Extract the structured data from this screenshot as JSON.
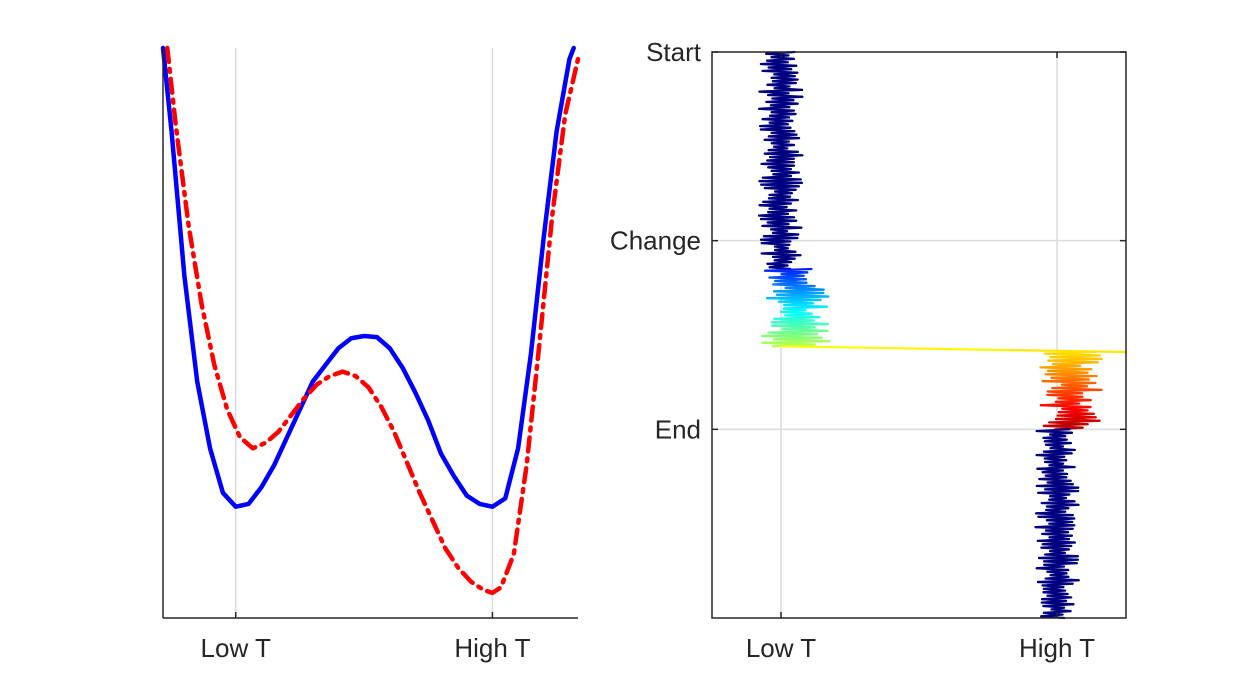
{
  "chart_data": [
    {
      "type": "line",
      "title": "",
      "xlabel": "",
      "ylabel": "",
      "x_tick_labels": [
        "Low T",
        "High T"
      ],
      "x_tick_values": [
        0.2,
        0.8
      ],
      "xlim": [
        0.03,
        1.0
      ],
      "ylim": [
        0,
        1
      ],
      "grid": "x-only",
      "legend": "none",
      "series": [
        {
          "color": "#0000ff",
          "style": "solid",
          "x": [
            0.03,
            0.05,
            0.08,
            0.11,
            0.14,
            0.17,
            0.2,
            0.23,
            0.26,
            0.29,
            0.32,
            0.35,
            0.38,
            0.41,
            0.44,
            0.47,
            0.5,
            0.53,
            0.56,
            0.59,
            0.62,
            0.65,
            0.68,
            0.71,
            0.74,
            0.77,
            0.8,
            0.83,
            0.86,
            0.89,
            0.92,
            0.95,
            0.98,
            0.99
          ],
          "y": [
            1.0,
            0.85,
            0.59,
            0.4,
            0.28,
            0.2,
            0.175,
            0.18,
            0.21,
            0.25,
            0.3,
            0.35,
            0.4,
            0.43,
            0.46,
            0.478,
            0.482,
            0.48,
            0.46,
            0.425,
            0.38,
            0.33,
            0.27,
            0.23,
            0.195,
            0.18,
            0.175,
            0.19,
            0.28,
            0.45,
            0.66,
            0.85,
            0.98,
            1.0
          ]
        },
        {
          "color": "#ff0000",
          "style": "dash-dot",
          "x": [
            0.04,
            0.06,
            0.09,
            0.12,
            0.15,
            0.18,
            0.21,
            0.24,
            0.27,
            0.3,
            0.33,
            0.36,
            0.39,
            0.42,
            0.45,
            0.48,
            0.51,
            0.54,
            0.57,
            0.6,
            0.63,
            0.66,
            0.69,
            0.72,
            0.75,
            0.78,
            0.8,
            0.82,
            0.85,
            0.88,
            0.91,
            0.94,
            0.97,
            1.0
          ],
          "y": [
            1.0,
            0.86,
            0.68,
            0.54,
            0.43,
            0.35,
            0.3,
            0.28,
            0.29,
            0.31,
            0.34,
            0.37,
            0.395,
            0.41,
            0.418,
            0.41,
            0.39,
            0.355,
            0.31,
            0.255,
            0.2,
            0.15,
            0.1,
            0.065,
            0.04,
            0.025,
            0.02,
            0.03,
            0.09,
            0.25,
            0.47,
            0.7,
            0.88,
            0.98
          ]
        }
      ]
    },
    {
      "type": "line",
      "title": "",
      "xlabel": "",
      "ylabel": "",
      "x_tick_labels": [
        "Low T",
        "High T"
      ],
      "y_tick_labels": [
        "Start",
        "Change",
        "End"
      ],
      "y_tick_values": [
        0,
        1,
        2
      ],
      "ylim": [
        0,
        3
      ],
      "y_direction": "reversed",
      "xlim": [
        -0.25,
        1.25
      ],
      "grid": "on",
      "legend": "none",
      "colormap": "jet",
      "colormap_stops": [
        "#00008f",
        "#0000ff",
        "#00ffff",
        "#ffff00",
        "#ff0000",
        "#800000"
      ],
      "series": [
        {
          "name": "",
          "segments": [
            {
              "from_y": 0.0,
              "to_y": 1.15,
              "x_center": 0.0,
              "x_spread": 0.1,
              "color_start": 0.0,
              "color_end": 0.0
            },
            {
              "from_y": 1.15,
              "to_y": 1.56,
              "x_center": 0.05,
              "x_spread": 0.16,
              "color_start": 0.15,
              "color_end": 0.55
            },
            {
              "from_y": 1.56,
              "to_y": 1.59,
              "x_center": 0.6,
              "x_spread": 0.6,
              "color_start": 0.6,
              "color_end": 0.65
            },
            {
              "from_y": 1.59,
              "to_y": 2.0,
              "x_center": 1.05,
              "x_spread": 0.14,
              "color_start": 0.65,
              "color_end": 0.95
            },
            {
              "from_y": 2.0,
              "to_y": 3.0,
              "x_center": 1.0,
              "x_spread": 0.1,
              "color_start": 0.0,
              "color_end": 0.0
            }
          ]
        }
      ]
    }
  ]
}
